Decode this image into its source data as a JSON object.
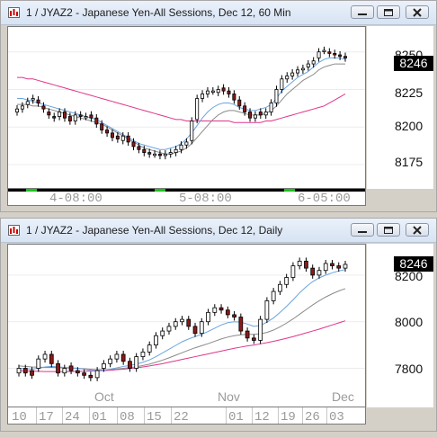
{
  "top_window": {
    "title": "1 / JYAZ2 - Japanese Yen-All Sessions, Dec 12, 60 Min",
    "y_ticks": [
      "8250",
      "8225",
      "8200",
      "8175"
    ],
    "last_price": "8246",
    "time_labels": [
      "4-08:00",
      "5-08:00",
      "6-05:00"
    ],
    "colors": {
      "up": "#ffffff",
      "down": "#8b1a1a",
      "ma_fast": "#6aa4e0",
      "ma_mid": "#7a7a7a",
      "ma_slow": "#e0358a"
    }
  },
  "bottom_window": {
    "title": "1 / JYAZ2 - Japanese Yen-All Sessions, Dec 12, Daily",
    "y_ticks": [
      "8200",
      "8000",
      "7800"
    ],
    "last_price": "8246",
    "month_labels": [
      "Oct",
      "Nov",
      "Dec"
    ],
    "date_labels": [
      "10",
      "17",
      "24",
      "01",
      "08",
      "15",
      "22",
      "01",
      "12",
      "19",
      "26",
      "03"
    ]
  },
  "chart_data": [
    {
      "type": "candlestick",
      "title": "1 / JYAZ2 - Japanese Yen-All Sessions, Dec 12, 60 Min",
      "ylim": [
        8163,
        8263
      ],
      "close": [
        8212,
        8214,
        8217,
        8219,
        8216,
        8212,
        8208,
        8206,
        8210,
        8206,
        8204,
        8208,
        8207,
        8207,
        8206,
        8202,
        8198,
        8196,
        8193,
        8192,
        8194,
        8190,
        8187,
        8185,
        8183,
        8182,
        8182,
        8181,
        8182,
        8183,
        8185,
        8188,
        8190,
        8204,
        8219,
        8222,
        8224,
        8224,
        8225,
        8224,
        8222,
        8218,
        8214,
        8210,
        8206,
        8208,
        8208,
        8210,
        8216,
        8225,
        8232,
        8234,
        8236,
        8238,
        8239,
        8242,
        8244,
        8250,
        8251,
        8249,
        8248,
        8247,
        8246
      ],
      "open": [
        8210,
        8212,
        8215,
        8218,
        8218,
        8214,
        8210,
        8207,
        8207,
        8210,
        8207,
        8204,
        8208,
        8207,
        8208,
        8206,
        8202,
        8198,
        8196,
        8194,
        8191,
        8194,
        8190,
        8187,
        8185,
        8183,
        8182,
        8182,
        8181,
        8182,
        8183,
        8185,
        8188,
        8191,
        8205,
        8219,
        8222,
        8224,
        8223,
        8226,
        8224,
        8222,
        8218,
        8214,
        8210,
        8206,
        8210,
        8208,
        8210,
        8216,
        8225,
        8232,
        8234,
        8236,
        8238,
        8240,
        8242,
        8246,
        8251,
        8250,
        8249,
        8248,
        8247
      ],
      "ma_fast": [
        8219,
        8219,
        8218,
        8217,
        8216,
        8215,
        8214,
        8213,
        8212,
        8211,
        8210,
        8209,
        8208,
        8207,
        8206,
        8205,
        8203,
        8201,
        8199,
        8197,
        8195,
        8193,
        8191,
        8189,
        8188,
        8187,
        8186,
        8185,
        8185,
        8186,
        8187,
        8189,
        8192,
        8196,
        8201,
        8206,
        8210,
        8213,
        8215,
        8216,
        8216,
        8215,
        8213,
        8212,
        8211,
        8211,
        8212,
        8213,
        8215,
        8219,
        8224,
        8227,
        8230,
        8233,
        8235,
        8237,
        8240,
        8243,
        8245,
        8246,
        8246,
        8246,
        8245
      ],
      "ma_mid": [
        8215,
        8215,
        8215,
        8214,
        8214,
        8213,
        8212,
        8211,
        8210,
        8209,
        8208,
        8207,
        8206,
        8205,
        8204,
        8203,
        8202,
        8200,
        8198,
        8196,
        8194,
        8192,
        8190,
        8188,
        8186,
        8185,
        8184,
        8183,
        8182,
        8182,
        8183,
        8184,
        8186,
        8189,
        8193,
        8197,
        8201,
        8205,
        8208,
        8210,
        8211,
        8211,
        8210,
        8209,
        8208,
        8208,
        8208,
        8209,
        8211,
        8214,
        8218,
        8222,
        8225,
        8228,
        8231,
        8233,
        8235,
        8238,
        8240,
        8241,
        8242,
        8242,
        8242
      ],
      "ma_slow": [
        8233,
        8233,
        8232,
        8232,
        8231,
        8230,
        8229,
        8228,
        8227,
        8226,
        8225,
        8224,
        8223,
        8222,
        8221,
        8220,
        8219,
        8218,
        8217,
        8216,
        8215,
        8214,
        8213,
        8212,
        8211,
        8210,
        8209,
        8208,
        8207,
        8206,
        8205,
        8205,
        8204,
        8204,
        8204,
        8204,
        8204,
        8204,
        8204,
        8204,
        8204,
        8203,
        8203,
        8203,
        8203,
        8203,
        8203,
        8204,
        8204,
        8205,
        8206,
        8207,
        8208,
        8209,
        8210,
        8211,
        8212,
        8213,
        8214,
        8216,
        8218,
        8220,
        8222
      ]
    },
    {
      "type": "candlestick",
      "title": "1 / JYAZ2 - Japanese Yen-All Sessions, Dec 12, Daily",
      "ylim": [
        7690,
        8300
      ],
      "close": [
        7800,
        7780,
        7770,
        7840,
        7860,
        7820,
        7780,
        7800,
        7790,
        7780,
        7770,
        7760,
        7790,
        7820,
        7840,
        7860,
        7830,
        7800,
        7850,
        7870,
        7900,
        7940,
        7960,
        7980,
        8000,
        8010,
        7980,
        7950,
        8000,
        8040,
        8060,
        8050,
        8030,
        8020,
        7960,
        7930,
        7920,
        8010,
        8090,
        8130,
        8160,
        8190,
        8240,
        8260,
        8230,
        8200,
        8220,
        8250,
        8240,
        8230,
        8246
      ],
      "open": [
        7780,
        7800,
        7790,
        7800,
        7840,
        7860,
        7820,
        7780,
        7810,
        7790,
        7780,
        7770,
        7760,
        7800,
        7820,
        7840,
        7860,
        7830,
        7800,
        7850,
        7870,
        7900,
        7940,
        7960,
        7980,
        8000,
        8010,
        7980,
        7950,
        8000,
        8040,
        8060,
        8050,
        8030,
        8020,
        7960,
        7930,
        7920,
        8010,
        8090,
        8130,
        8160,
        8190,
        8240,
        8260,
        8230,
        8200,
        8220,
        8250,
        8240,
        8230
      ],
      "ma_fast": [
        7800,
        7798,
        7796,
        7800,
        7806,
        7808,
        7806,
        7804,
        7802,
        7800,
        7796,
        7792,
        7790,
        7792,
        7796,
        7802,
        7808,
        7812,
        7818,
        7826,
        7836,
        7850,
        7866,
        7882,
        7898,
        7914,
        7926,
        7936,
        7946,
        7958,
        7972,
        7986,
        7996,
        8000,
        7998,
        7990,
        7980,
        7984,
        7998,
        8016,
        8040,
        8066,
        8094,
        8124,
        8150,
        8172,
        8188,
        8200,
        8210,
        8218,
        8224
      ],
      "ma_mid": [
        7810,
        7808,
        7806,
        7805,
        7804,
        7804,
        7803,
        7802,
        7801,
        7800,
        7798,
        7796,
        7794,
        7794,
        7795,
        7797,
        7800,
        7803,
        7807,
        7812,
        7818,
        7826,
        7835,
        7845,
        7856,
        7867,
        7878,
        7888,
        7897,
        7906,
        7916,
        7926,
        7934,
        7940,
        7944,
        7946,
        7946,
        7948,
        7954,
        7964,
        7978,
        7994,
        8012,
        8032,
        8052,
        8072,
        8090,
        8106,
        8120,
        8132,
        8142
      ],
      "ma_slow": [
        7790,
        7789,
        7788,
        7787,
        7786,
        7786,
        7786,
        7786,
        7786,
        7787,
        7787,
        7788,
        7789,
        7790,
        7792,
        7794,
        7796,
        7799,
        7802,
        7806,
        7810,
        7815,
        7820,
        7826,
        7832,
        7838,
        7844,
        7850,
        7856,
        7862,
        7868,
        7874,
        7880,
        7886,
        7891,
        7896,
        7900,
        7905,
        7910,
        7916,
        7922,
        7929,
        7936,
        7944,
        7952,
        7960,
        7968,
        7977,
        7986,
        7995,
        8004
      ]
    }
  ]
}
